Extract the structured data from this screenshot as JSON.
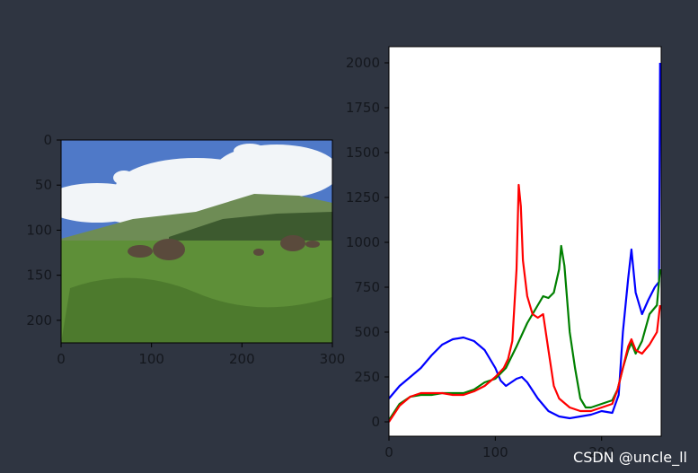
{
  "watermark": "CSDN @uncle_ll",
  "colors": {
    "background": "#2f3541",
    "tick_text": "#14171d",
    "blue": "#0000ff",
    "green": "#008000",
    "red": "#ff0000"
  },
  "chart_data": [
    {
      "type": "image",
      "image_content": "photo: blue sky with clouds, green hills, cattle grazing on green grassland",
      "xlim": [
        0,
        300
      ],
      "ylim": [
        225,
        0
      ],
      "xticks": [
        "0",
        "100",
        "200",
        "300"
      ],
      "yticks": [
        "0",
        "50",
        "100",
        "150",
        "200"
      ],
      "palette": {
        "sky": "#4f79c8",
        "cloud": "#f2f5f8",
        "hill": "#6e8c55",
        "treeline": "#3d5a2f",
        "grass": "#5e8f38",
        "grass_dark": "#3f6a25",
        "cow": "#5a4a3c"
      }
    },
    {
      "type": "line",
      "xlim": [
        0,
        256
      ],
      "ylim": [
        -80,
        2090
      ],
      "grid": false,
      "xticks": [
        "0",
        "100",
        "200"
      ],
      "yticks": [
        "0",
        "250",
        "500",
        "750",
        "1000",
        "1250",
        "1500",
        "1750",
        "2000"
      ],
      "series": [
        {
          "color": "blue",
          "points": [
            [
              0,
              130
            ],
            [
              10,
              200
            ],
            [
              20,
              250
            ],
            [
              30,
              300
            ],
            [
              40,
              370
            ],
            [
              50,
              430
            ],
            [
              60,
              460
            ],
            [
              70,
              470
            ],
            [
              80,
              450
            ],
            [
              90,
              400
            ],
            [
              100,
              300
            ],
            [
              105,
              230
            ],
            [
              110,
              200
            ],
            [
              115,
              220
            ],
            [
              120,
              240
            ],
            [
              125,
              250
            ],
            [
              130,
              220
            ],
            [
              140,
              130
            ],
            [
              150,
              60
            ],
            [
              160,
              30
            ],
            [
              170,
              20
            ],
            [
              180,
              30
            ],
            [
              190,
              40
            ],
            [
              200,
              60
            ],
            [
              210,
              50
            ],
            [
              216,
              150
            ],
            [
              220,
              500
            ],
            [
              225,
              800
            ],
            [
              228,
              960
            ],
            [
              232,
              720
            ],
            [
              238,
              600
            ],
            [
              244,
              680
            ],
            [
              250,
              750
            ],
            [
              254,
              780
            ],
            [
              255,
              2000
            ]
          ]
        },
        {
          "color": "green",
          "points": [
            [
              0,
              10
            ],
            [
              10,
              100
            ],
            [
              20,
              140
            ],
            [
              30,
              150
            ],
            [
              40,
              150
            ],
            [
              50,
              160
            ],
            [
              60,
              160
            ],
            [
              70,
              160
            ],
            [
              80,
              180
            ],
            [
              90,
              220
            ],
            [
              100,
              240
            ],
            [
              110,
              300
            ],
            [
              120,
              420
            ],
            [
              130,
              550
            ],
            [
              140,
              650
            ],
            [
              145,
              700
            ],
            [
              150,
              690
            ],
            [
              155,
              720
            ],
            [
              160,
              850
            ],
            [
              162,
              980
            ],
            [
              165,
              870
            ],
            [
              170,
              500
            ],
            [
              175,
              300
            ],
            [
              180,
              130
            ],
            [
              185,
              80
            ],
            [
              190,
              80
            ],
            [
              200,
              100
            ],
            [
              210,
              120
            ],
            [
              215,
              180
            ],
            [
              220,
              300
            ],
            [
              225,
              400
            ],
            [
              228,
              440
            ],
            [
              232,
              380
            ],
            [
              238,
              450
            ],
            [
              245,
              600
            ],
            [
              252,
              650
            ],
            [
              255,
              850
            ]
          ]
        },
        {
          "color": "red",
          "points": [
            [
              0,
              0
            ],
            [
              10,
              90
            ],
            [
              20,
              140
            ],
            [
              30,
              160
            ],
            [
              40,
              160
            ],
            [
              50,
              160
            ],
            [
              60,
              150
            ],
            [
              70,
              150
            ],
            [
              80,
              170
            ],
            [
              90,
              200
            ],
            [
              100,
              250
            ],
            [
              108,
              300
            ],
            [
              112,
              350
            ],
            [
              116,
              450
            ],
            [
              120,
              850
            ],
            [
              122,
              1320
            ],
            [
              124,
              1200
            ],
            [
              126,
              900
            ],
            [
              130,
              700
            ],
            [
              135,
              600
            ],
            [
              140,
              580
            ],
            [
              145,
              600
            ],
            [
              150,
              400
            ],
            [
              155,
              200
            ],
            [
              160,
              130
            ],
            [
              170,
              80
            ],
            [
              180,
              60
            ],
            [
              190,
              60
            ],
            [
              200,
              80
            ],
            [
              210,
              100
            ],
            [
              215,
              180
            ],
            [
              220,
              300
            ],
            [
              225,
              420
            ],
            [
              228,
              460
            ],
            [
              232,
              400
            ],
            [
              238,
              380
            ],
            [
              245,
              430
            ],
            [
              252,
              500
            ],
            [
              255,
              650
            ]
          ]
        }
      ]
    }
  ]
}
